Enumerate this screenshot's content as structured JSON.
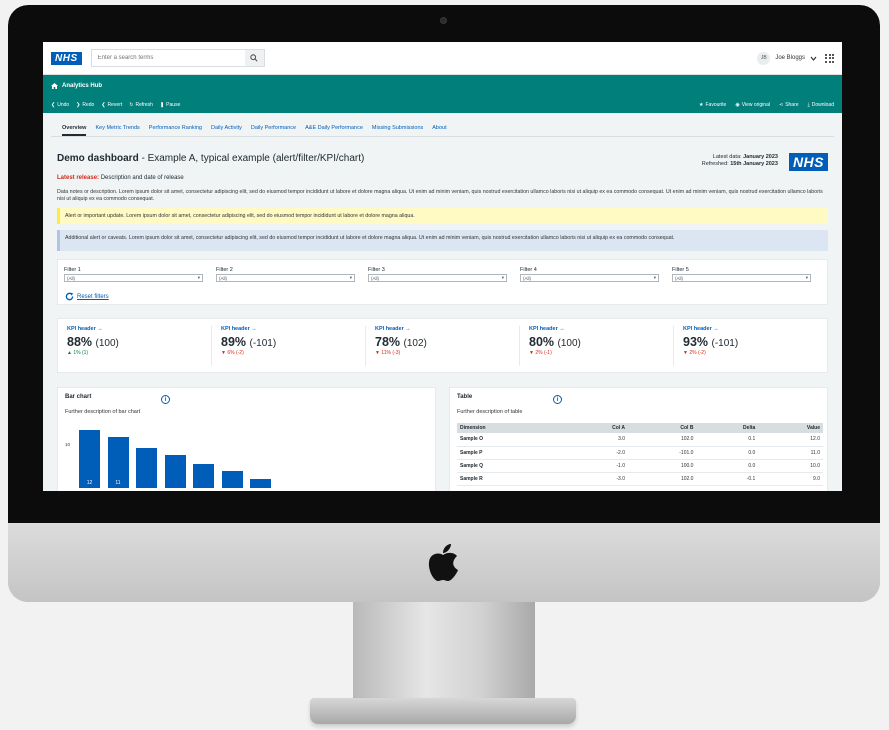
{
  "header": {
    "search_placeholder": "Enter a search terms",
    "user_initials": "JB",
    "user_name": "Joe Bloggs",
    "logo_text": "NHS"
  },
  "hub": {
    "title": "Analytics Hub",
    "toolbar_left": [
      "Undo",
      "Redo",
      "Revert",
      "Refresh",
      "Pause"
    ],
    "toolbar_right": [
      "Favourite",
      "View original",
      "Share",
      "Download"
    ]
  },
  "tabs": [
    "Overview",
    "Key Metric Trends",
    "Performance Ranking",
    "Daily Activity",
    "Daily Performance",
    "A&E Daily Performance",
    "Missing Submissions",
    "About"
  ],
  "dashboard": {
    "title_bold": "Demo dashboard",
    "title_rest": " - Example A, typical example (alert/filter/KPI/chart)",
    "latest_label": "Latest data: ",
    "latest_value": "January 2023",
    "refreshed_label": "Refreshed: ",
    "refreshed_value": "15th January 2023",
    "release_label": "Latest release:",
    "release_text": " Description and date of release",
    "notes": "Data notes or description. Lorem ipsum dolor sit amet, consectetur adipiscing elit, sed do eiusmod tempor incididunt ut labore et dolore magna aliqua. Ut enim ad minim veniam, quis nostrud exercitation ullamco laboris nisi ut aliquip ex ea commodo consequat. Ut enim ad minim veniam, quis nostrud exercitation ullamco laboris nisi ut aliquip ex ea commodo consequat.",
    "alert": "Alert or important update. Lorem ipsum dolor sit amet, consectetur adipiscing elit, sed do eiusmod tempor incididunt ut labore et dolore magna aliqua.",
    "caveat": "Additional alert or caveats. Lorem ipsum dolor sit amet, consectetur adipiscing elit, sed do eiusmod tempor incididunt ut labore et dolore magna aliqua. Ut enim ad minim veniam, quis nostrud exercitation ullamco laboris nisi ut aliquip ex ea commodo consequat."
  },
  "filters": {
    "items": [
      {
        "label": "Filter 1",
        "value": "(All)"
      },
      {
        "label": "Filter 2",
        "value": "(All)"
      },
      {
        "label": "Filter 3",
        "value": "(All)"
      },
      {
        "label": "Filter 4",
        "value": "(All)"
      },
      {
        "label": "Filter 5",
        "value": "(All)"
      }
    ],
    "reset_label": "Reset filters"
  },
  "kpis": [
    {
      "header": "KPI header →",
      "value": "88%",
      "sub": "(100)",
      "change": "▲ 1% (1)",
      "dir": "up"
    },
    {
      "header": "KPI header →",
      "value": "89%",
      "sub": "(-101)",
      "change": "▼ 6% (-2)",
      "dir": "down"
    },
    {
      "header": "KPI header →",
      "value": "78%",
      "sub": "(102)",
      "change": "▼ 11% (-3)",
      "dir": "down"
    },
    {
      "header": "KPI header →",
      "value": "80%",
      "sub": "(100)",
      "change": "▼ 2% (-1)",
      "dir": "down"
    },
    {
      "header": "KPI header →",
      "value": "93%",
      "sub": "(-101)",
      "change": "▼ 2% (-2)",
      "dir": "down"
    }
  ],
  "bar_panel": {
    "title": "Bar chart",
    "description": "Further description of bar chart"
  },
  "chart_data": {
    "type": "bar",
    "categories": [
      "",
      "",
      "",
      "",
      "",
      "",
      ""
    ],
    "values": [
      12,
      11,
      9.5,
      8.5,
      7.3,
      6.3,
      5.2
    ],
    "data_labels": [
      "12",
      "11",
      "",
      "",
      "",
      "",
      ""
    ],
    "y_ticks": [
      "10"
    ],
    "ylim": [
      4,
      12.5
    ],
    "color": "#005eb8"
  },
  "table_panel": {
    "title": "Table",
    "description": "Further description of table",
    "columns": [
      "Dimension",
      "Col A",
      "Col B",
      "Delta",
      "Value"
    ],
    "rows": [
      [
        "Sample O",
        "3.0",
        "102.0",
        "0.1",
        "12.0"
      ],
      [
        "Sample P",
        "-2.0",
        "-101.0",
        "0.0",
        "11.0"
      ],
      [
        "Sample Q",
        "-1.0",
        "100.0",
        "0.0",
        "10.0"
      ],
      [
        "Sample R",
        "-3.0",
        "102.0",
        "-0.1",
        "9.0"
      ]
    ]
  }
}
